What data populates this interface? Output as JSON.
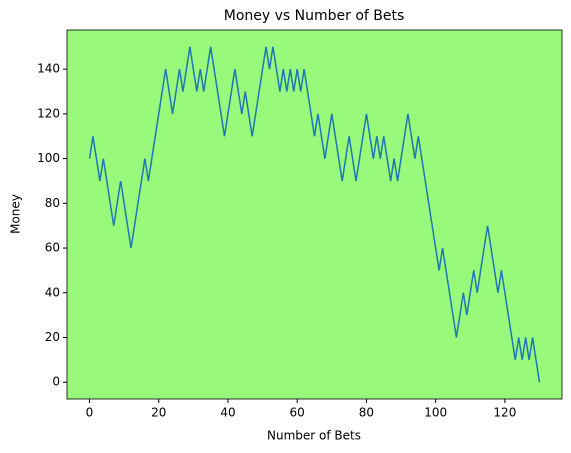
{
  "chart_data": {
    "type": "line",
    "title": "Money vs Number of Bets",
    "x_label": "Number of Bets",
    "y_label": "Money",
    "x": [
      0,
      1,
      2,
      3,
      4,
      5,
      6,
      7,
      8,
      9,
      10,
      11,
      12,
      13,
      14,
      15,
      16,
      17,
      18,
      19,
      20,
      21,
      22,
      23,
      24,
      25,
      26,
      27,
      28,
      29,
      30,
      31,
      32,
      33,
      34,
      35,
      36,
      37,
      38,
      39,
      40,
      41,
      42,
      43,
      44,
      45,
      46,
      47,
      48,
      49,
      50,
      51,
      52,
      53,
      54,
      55,
      56,
      57,
      58,
      59,
      60,
      61,
      62,
      63,
      64,
      65,
      66,
      67,
      68,
      69,
      70,
      71,
      72,
      73,
      74,
      75,
      76,
      77,
      78,
      79,
      80,
      81,
      82,
      83,
      84,
      85,
      86,
      87,
      88,
      89,
      90,
      91,
      92,
      93,
      94,
      95,
      96,
      97,
      98,
      99,
      100,
      101,
      102,
      103,
      104,
      105,
      106,
      107,
      108,
      109,
      110,
      111,
      112,
      113,
      114,
      115,
      116,
      117,
      118,
      119,
      120,
      121,
      122,
      123,
      124,
      125,
      126,
      127,
      128,
      129,
      130
    ],
    "series": [
      {
        "color": "#1f77b4",
        "values": [
          100,
          110,
          100,
          90,
          100,
          90,
          80,
          70,
          80,
          90,
          80,
          70,
          60,
          70,
          80,
          90,
          100,
          90,
          100,
          110,
          120,
          130,
          140,
          130,
          120,
          130,
          140,
          130,
          140,
          150,
          140,
          130,
          140,
          130,
          140,
          150,
          140,
          130,
          120,
          110,
          120,
          130,
          140,
          130,
          120,
          130,
          120,
          110,
          120,
          130,
          140,
          150,
          140,
          150,
          140,
          130,
          140,
          130,
          140,
          130,
          140,
          130,
          140,
          130,
          120,
          110,
          120,
          110,
          100,
          110,
          120,
          110,
          100,
          90,
          100,
          110,
          100,
          90,
          100,
          110,
          120,
          110,
          100,
          110,
          100,
          110,
          100,
          90,
          100,
          90,
          100,
          110,
          120,
          110,
          100,
          110,
          100,
          90,
          80,
          70,
          60,
          50,
          60,
          50,
          40,
          30,
          20,
          30,
          40,
          30,
          40,
          50,
          40,
          50,
          60,
          70,
          60,
          50,
          40,
          50,
          40,
          30,
          20,
          10,
          20,
          10,
          20,
          10,
          20,
          10,
          0
        ]
      }
    ],
    "xlim": [
      -6.5,
      136.5
    ],
    "ylim": [
      -7.5,
      157.5
    ],
    "xticks": [
      0,
      20,
      40,
      60,
      80,
      100,
      120
    ],
    "yticks": [
      0,
      20,
      40,
      60,
      80,
      100,
      120,
      140
    ],
    "background": "#98f97a"
  }
}
